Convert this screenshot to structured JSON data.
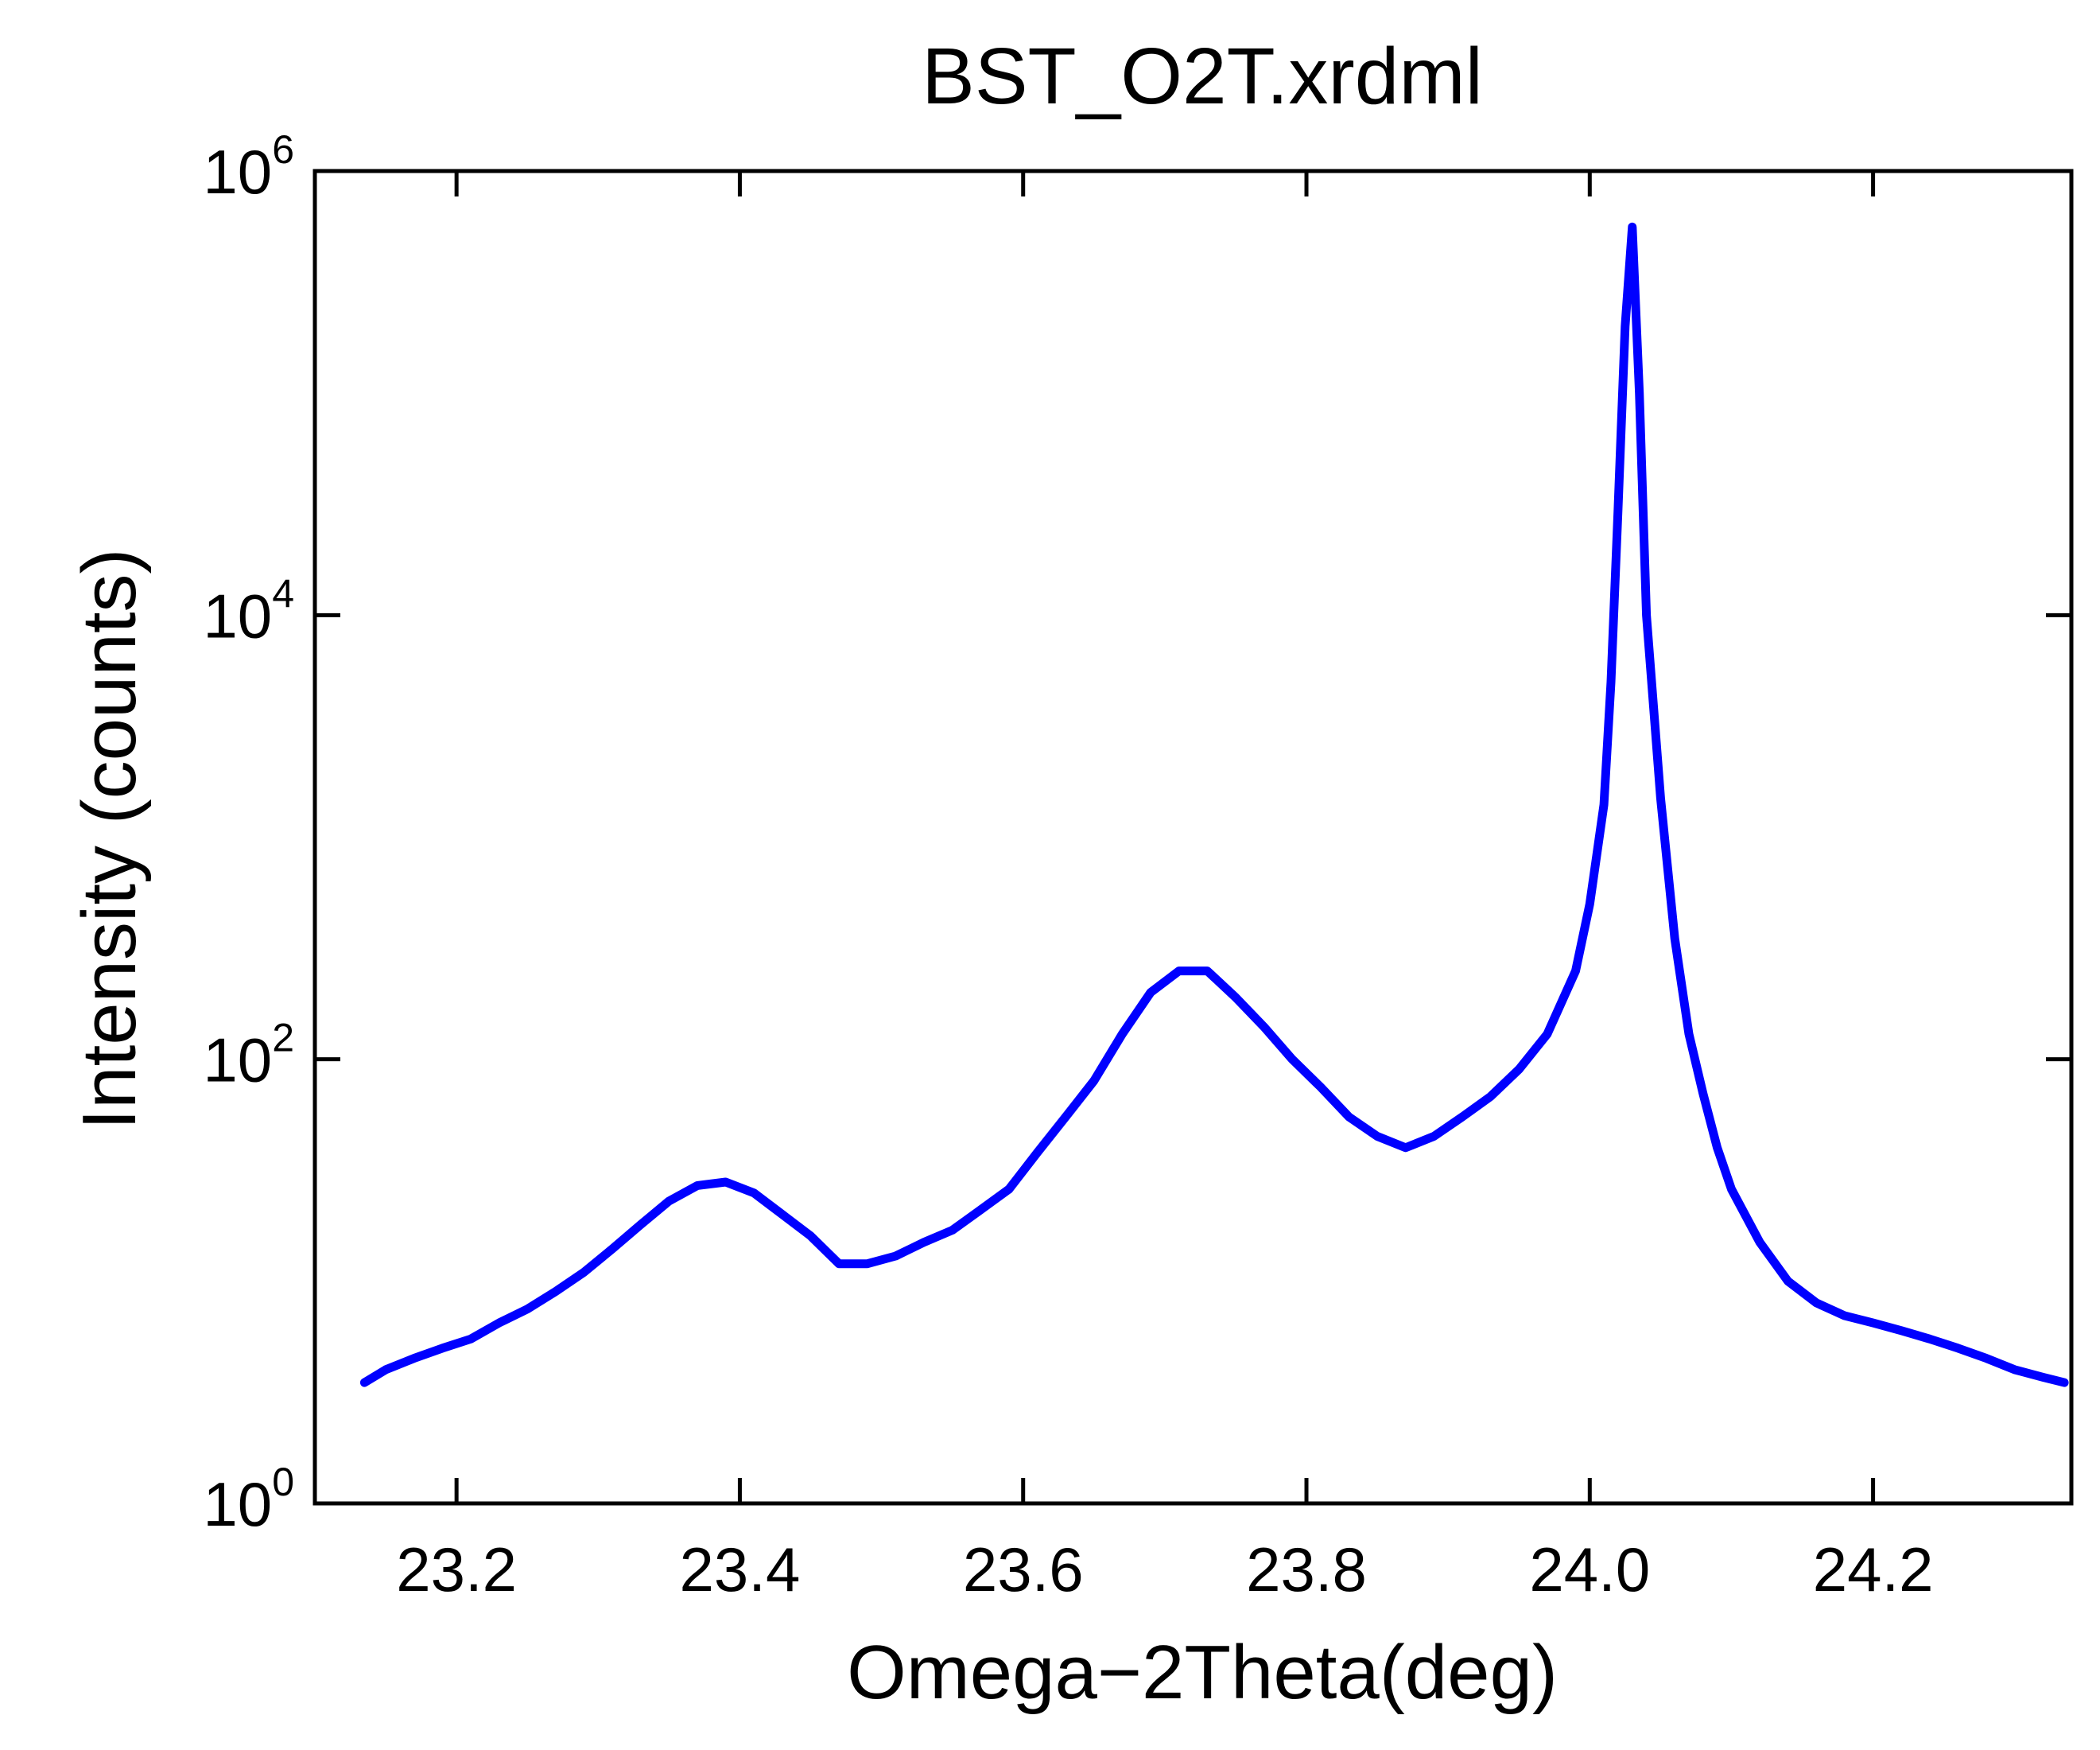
{
  "chart_data": {
    "type": "line",
    "title": "BST_O2T.xrdml",
    "xlabel": "Omega−2Theta(deg)",
    "ylabel": "Intensity (counts)",
    "xlim": [
      23.1,
      24.34
    ],
    "ylim": [
      1,
      1000000
    ],
    "yscale": "log",
    "grid": false,
    "legend": "none",
    "line_color": "#0000ff",
    "x_ticks": [
      {
        "value": 23.2,
        "label": "23.2"
      },
      {
        "value": 23.4,
        "label": "23.4"
      },
      {
        "value": 23.6,
        "label": "23.6"
      },
      {
        "value": 23.8,
        "label": "23.8"
      },
      {
        "value": 24.0,
        "label": "24.0"
      },
      {
        "value": 24.2,
        "label": "24.2"
      }
    ],
    "y_ticks": [
      {
        "value": 1,
        "base": "10",
        "exp": "0"
      },
      {
        "value": 100,
        "base": "10",
        "exp": "2"
      },
      {
        "value": 10000,
        "base": "10",
        "exp": "4"
      },
      {
        "value": 1000000,
        "base": "10",
        "exp": "6"
      }
    ],
    "series": [
      {
        "x": [
          23.135,
          23.15,
          23.17,
          23.19,
          23.21,
          23.23,
          23.25,
          23.27,
          23.29,
          23.31,
          23.33,
          23.35,
          23.37,
          23.39,
          23.41,
          23.43,
          23.45,
          23.47,
          23.49,
          23.51,
          23.53,
          23.55,
          23.57,
          23.59,
          23.61,
          23.63,
          23.65,
          23.67,
          23.69,
          23.71,
          23.73,
          23.75,
          23.77,
          23.79,
          23.81,
          23.83,
          23.85,
          23.87,
          23.89,
          23.91,
          23.93,
          23.95,
          23.97,
          23.99,
          24.0,
          24.01,
          24.015,
          24.02,
          24.025,
          24.03,
          24.035,
          24.04,
          24.05,
          24.06,
          24.07,
          24.08,
          24.09,
          24.1,
          24.12,
          24.14,
          24.16,
          24.18,
          24.2,
          24.22,
          24.24,
          24.26,
          24.28,
          24.3,
          24.32,
          24.335
        ],
        "y": [
          3.5,
          4,
          4.5,
          5,
          5.5,
          6.5,
          7.5,
          9,
          11,
          14,
          18,
          23,
          27,
          28,
          25,
          20,
          16,
          12,
          12,
          13,
          15,
          17,
          21,
          26,
          38,
          55,
          80,
          130,
          200,
          250,
          250,
          190,
          140,
          100,
          75,
          55,
          45,
          40,
          45,
          55,
          68,
          90,
          130,
          250,
          500,
          1400,
          5000,
          30000,
          200000,
          560000,
          100000,
          10000,
          1500,
          350,
          130,
          70,
          40,
          26,
          15,
          10,
          8,
          7,
          6.5,
          6,
          5.5,
          5,
          4.5,
          4,
          3.7,
          3.5
        ]
      }
    ]
  }
}
